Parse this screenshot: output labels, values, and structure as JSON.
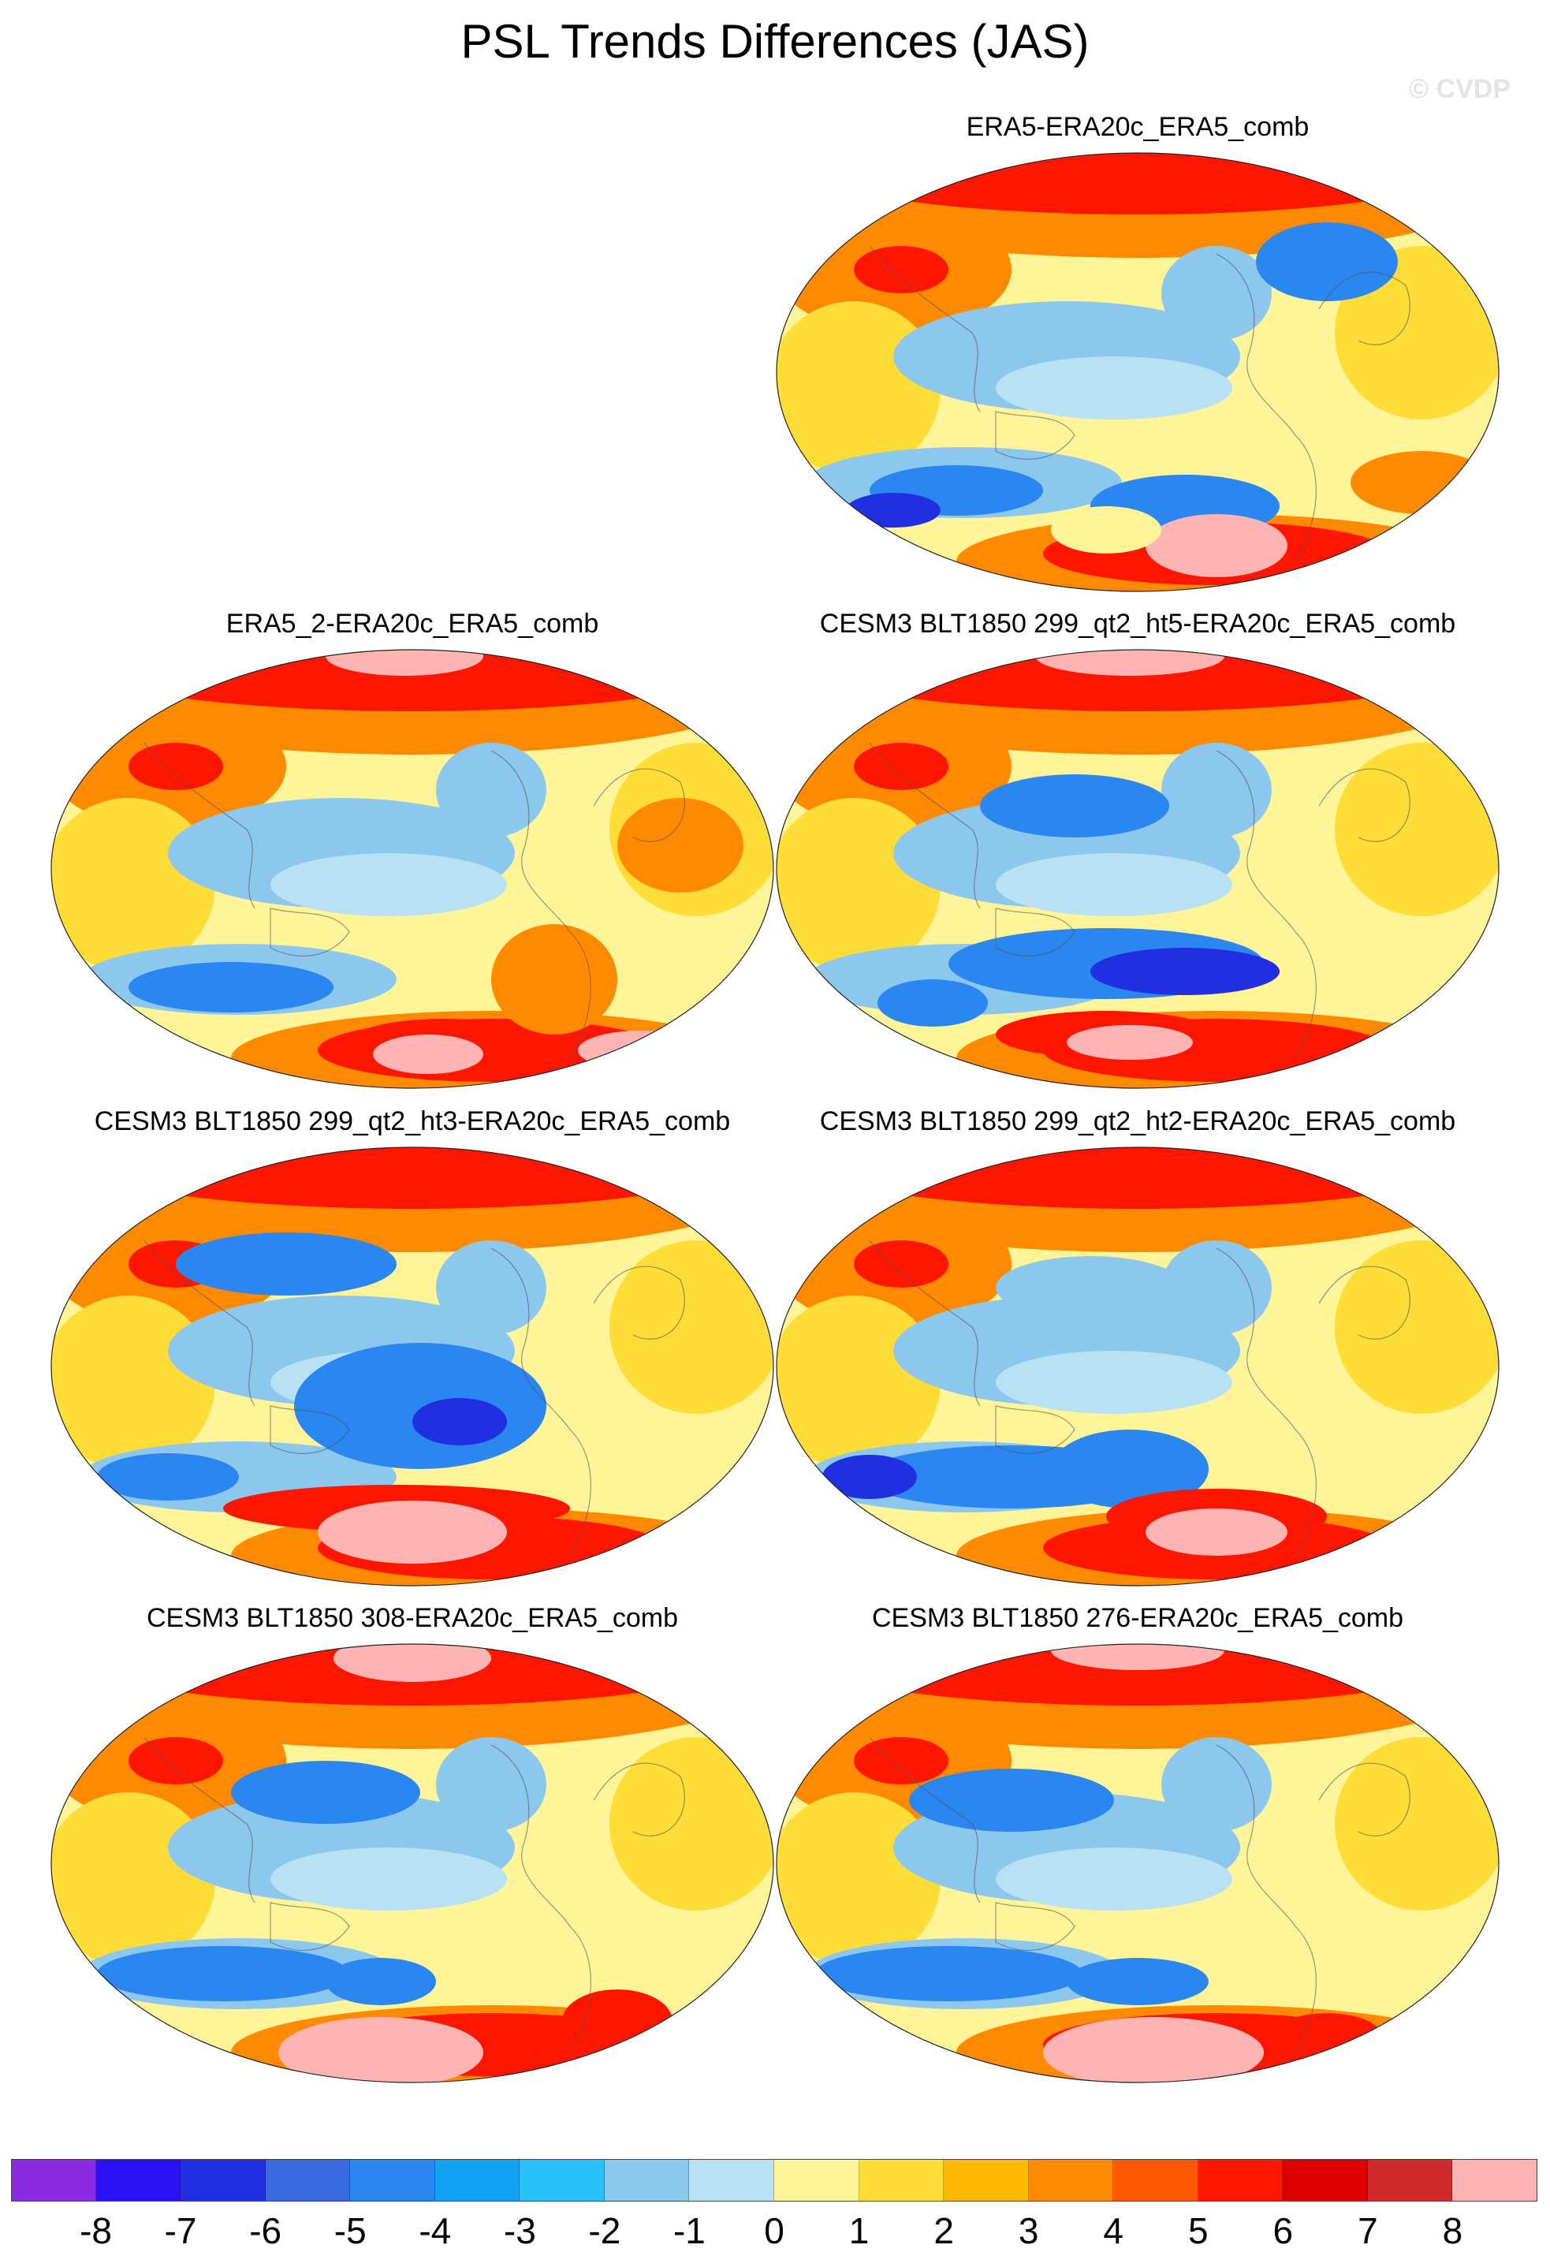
{
  "title": "PSL Trends Differences (JAS)",
  "credit": "© CVDP",
  "panels": [
    {
      "title": "ERA5-ERA20c_ERA5_comb"
    },
    {
      "title": "ERA5_2-ERA20c_ERA5_comb"
    },
    {
      "title": "CESM3 BLT1850 299_qt2_ht5-ERA20c_ERA5_comb"
    },
    {
      "title": "CESM3 BLT1850 299_qt2_ht3-ERA20c_ERA5_comb"
    },
    {
      "title": "CESM3 BLT1850 299_qt2_ht2-ERA20c_ERA5_comb"
    },
    {
      "title": "CESM3 BLT1850 308-ERA20c_ERA5_comb"
    },
    {
      "title": "CESM3 BLT1850 276-ERA20c_ERA5_comb"
    }
  ],
  "colorbar": {
    "labels": [
      "-8",
      "-7",
      "-6",
      "-5",
      "-4",
      "-3",
      "-2",
      "-1",
      "0",
      "1",
      "2",
      "3",
      "4",
      "5",
      "6",
      "7",
      "8"
    ],
    "colors": [
      "#8a2be2",
      "#2a12f5",
      "#2030e0",
      "#3a6ae0",
      "#2a86f0",
      "#12a2f5",
      "#28c0f8",
      "#8cc8ee",
      "#b8e2f4",
      "#fff598",
      "#ffdc36",
      "#ffb800",
      "#ff8a00",
      "#ff5800",
      "#ff1600",
      "#dc0000",
      "#d02a2a",
      "#ffb4b4"
    ]
  },
  "palette": {
    "deep_blue": "#2030e0",
    "blue": "#2a86f0",
    "light_blue": "#8cc8ee",
    "pale_blue": "#b8e2f4",
    "pale_yellow": "#fff598",
    "yellow": "#ffdc36",
    "orange": "#ff8a00",
    "red": "#ff1600",
    "dark_red": "#dc0000",
    "pink": "#ffb4b4"
  }
}
